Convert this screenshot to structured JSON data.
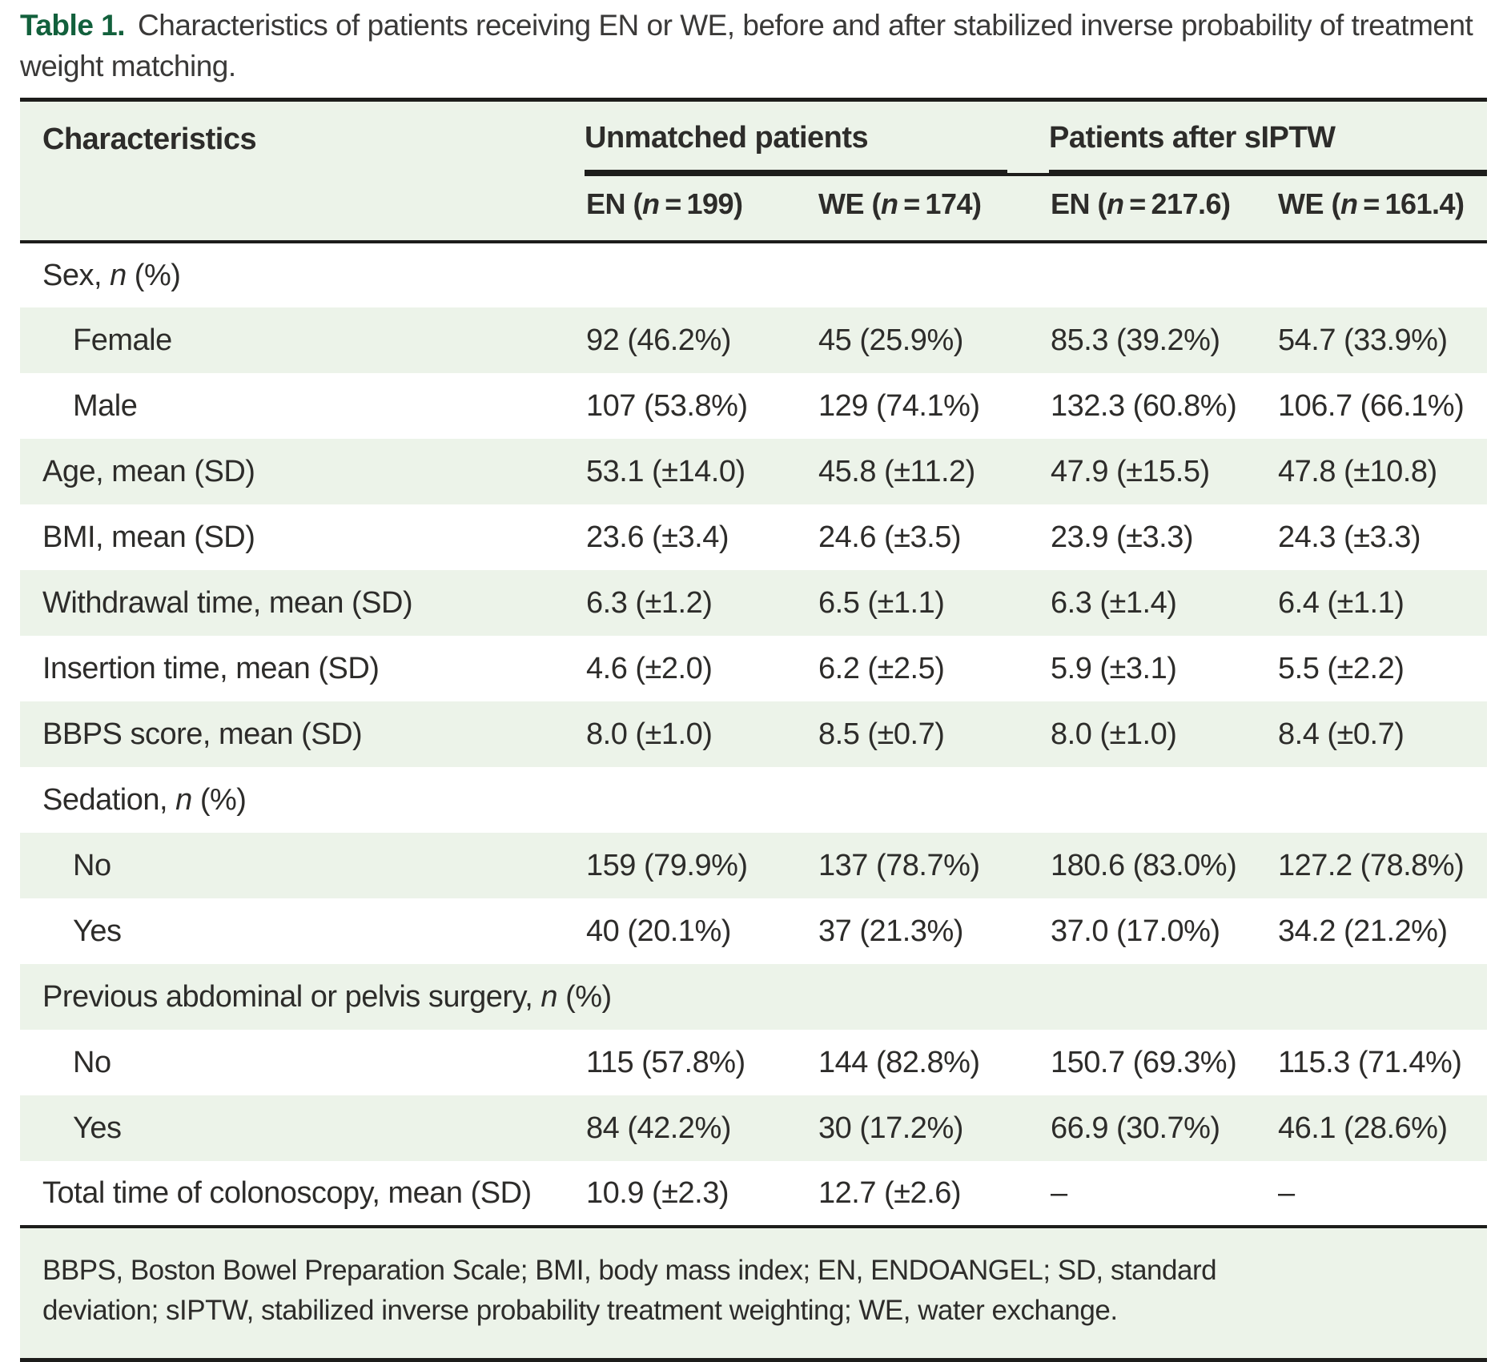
{
  "colors": {
    "row_highlight_green": "#ecf3e9",
    "caption_accent_green": "#12603c",
    "text_ink": "#2d2c2a",
    "rule_black": "#1d1d1b"
  },
  "title": {
    "label": "Table 1.",
    "text": "Characteristics of patients receiving EN or WE, before and after stabilized inverse probability of treatment weight matching."
  },
  "table": {
    "header": {
      "characteristics": "Characteristics",
      "groups": [
        {
          "label": "Unmatched patients",
          "cols": [
            {
              "pre": "EN (",
              "n": "n",
              "post": " = 199)"
            },
            {
              "pre": "WE (",
              "n": "n",
              "post": " = 174)"
            }
          ]
        },
        {
          "label": "Patients after sIPTW",
          "cols": [
            {
              "pre": "EN (",
              "n": "n",
              "post": " = 217.6)"
            },
            {
              "pre": "WE (",
              "n": "n",
              "post": " = 161.4)"
            }
          ]
        }
      ]
    },
    "rows": [
      {
        "type": "category",
        "pre": "Sex, ",
        "it": "n",
        "post": " (%)"
      },
      {
        "type": "data",
        "indent": true,
        "label": "Female",
        "cells": [
          "92 (46.2%)",
          "45 (25.9%)",
          "85.3 (39.2%)",
          "54.7 (33.9%)"
        ]
      },
      {
        "type": "data",
        "indent": true,
        "label": "Male",
        "cells": [
          "107 (53.8%)",
          "129 (74.1%)",
          "132.3 (60.8%)",
          "106.7 (66.1%)"
        ]
      },
      {
        "type": "data",
        "label": "Age, mean (SD)",
        "cells": [
          "53.1 (±14.0)",
          "45.8 (±11.2)",
          "47.9 (±15.5)",
          "47.8 (±10.8)"
        ]
      },
      {
        "type": "data",
        "label": "BMI, mean (SD)",
        "cells": [
          "23.6 (±3.4)",
          "24.6 (±3.5)",
          "23.9 (±3.3)",
          "24.3 (±3.3)"
        ]
      },
      {
        "type": "data",
        "label": "Withdrawal time, mean (SD)",
        "cells": [
          "6.3 (±1.2)",
          "6.5 (±1.1)",
          "6.3 (±1.4)",
          "6.4 (±1.1)"
        ]
      },
      {
        "type": "data",
        "label": "Insertion time, mean (SD)",
        "cells": [
          "4.6 (±2.0)",
          "6.2 (±2.5)",
          "5.9 (±3.1)",
          "5.5 (±2.2)"
        ]
      },
      {
        "type": "data",
        "label": "BBPS score, mean (SD)",
        "cells": [
          "8.0 (±1.0)",
          "8.5 (±0.7)",
          "8.0 (±1.0)",
          "8.4 (±0.7)"
        ]
      },
      {
        "type": "category",
        "pre": "Sedation, ",
        "it": "n",
        "post": " (%)"
      },
      {
        "type": "data",
        "indent": true,
        "label": "No",
        "cells": [
          "159 (79.9%)",
          "137 (78.7%)",
          "180.6 (83.0%)",
          "127.2 (78.8%)"
        ]
      },
      {
        "type": "data",
        "indent": true,
        "label": "Yes",
        "cells": [
          "40 (20.1%)",
          "37 (21.3%)",
          "37.0 (17.0%)",
          "34.2 (21.2%)"
        ]
      },
      {
        "type": "category",
        "pre": "Previous abdominal or pelvis surgery, ",
        "it": "n",
        "post": " (%)"
      },
      {
        "type": "data",
        "indent": true,
        "label": "No",
        "cells": [
          "115 (57.8%)",
          "144 (82.8%)",
          "150.7 (69.3%)",
          "115.3 (71.4%)"
        ]
      },
      {
        "type": "data",
        "indent": true,
        "label": "Yes",
        "cells": [
          "84 (42.2%)",
          "30 (17.2%)",
          "66.9 (30.7%)",
          "46.1 (28.6%)"
        ]
      },
      {
        "type": "data",
        "label": "Total time of colonoscopy, mean (SD)",
        "cells": [
          "10.9 (±2.3)",
          "12.7 (±2.6)",
          "–",
          "–"
        ]
      }
    ]
  },
  "footnote": "BBPS, Boston Bowel Preparation Scale; BMI, body mass index; EN, ENDOANGEL; SD, standard deviation; sIPTW, stabilized inverse probability treatment weighting; WE, water exchange."
}
